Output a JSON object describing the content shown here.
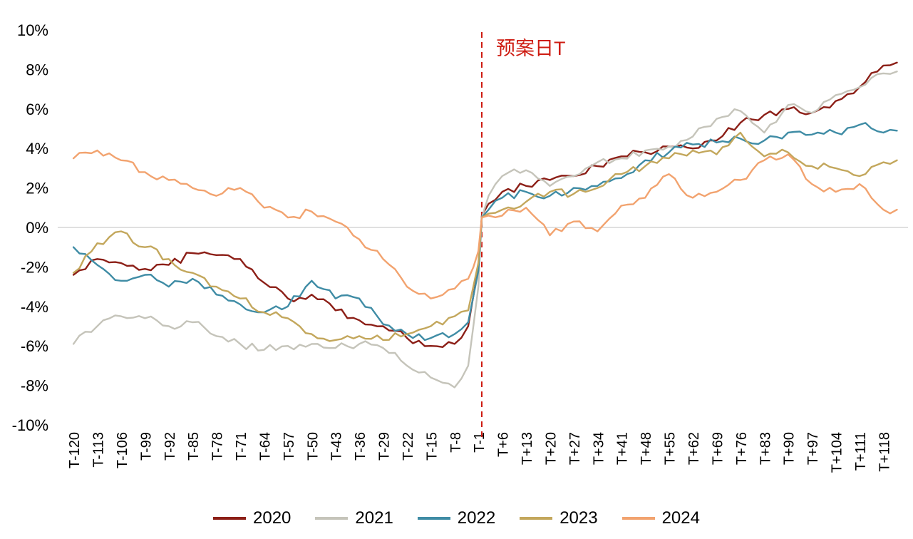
{
  "chart_data": {
    "type": "line",
    "title": "",
    "event_label": "预案日T",
    "event_x": 0,
    "event_line_color": "#CE1C12",
    "zero_line_color": "#D6D6D6",
    "text_color": "#000000",
    "ylim": [
      -10,
      10
    ],
    "y_ticks": [
      {
        "label": "10%",
        "value": 10
      },
      {
        "label": "8%",
        "value": 8
      },
      {
        "label": "6%",
        "value": 6
      },
      {
        "label": "4%",
        "value": 4
      },
      {
        "label": "2%",
        "value": 2
      },
      {
        "label": "0%",
        "value": 0
      },
      {
        "label": "-2%",
        "value": -2
      },
      {
        "label": "-4%",
        "value": -4
      },
      {
        "label": "-6%",
        "value": -6
      },
      {
        "label": "-8%",
        "value": -8
      },
      {
        "label": "-10%",
        "value": -10
      }
    ],
    "x_ticks": [
      {
        "label": "T-120",
        "value": -120
      },
      {
        "label": "T-113",
        "value": -113
      },
      {
        "label": "T-106",
        "value": -106
      },
      {
        "label": "T-99",
        "value": -99
      },
      {
        "label": "T-92",
        "value": -92
      },
      {
        "label": "T-85",
        "value": -85
      },
      {
        "label": "T-78",
        "value": -78
      },
      {
        "label": "T-71",
        "value": -71
      },
      {
        "label": "T-64",
        "value": -64
      },
      {
        "label": "T-57",
        "value": -57
      },
      {
        "label": "T-50",
        "value": -50
      },
      {
        "label": "T-43",
        "value": -43
      },
      {
        "label": "T-36",
        "value": -36
      },
      {
        "label": "T-29",
        "value": -29
      },
      {
        "label": "T-22",
        "value": -22
      },
      {
        "label": "T-15",
        "value": -15
      },
      {
        "label": "T-8",
        "value": -8
      },
      {
        "label": "T-1",
        "value": -1
      },
      {
        "label": "T+6",
        "value": 6
      },
      {
        "label": "T+13",
        "value": 13
      },
      {
        "label": "T+20",
        "value": 20
      },
      {
        "label": "T+27",
        "value": 27
      },
      {
        "label": "T+34",
        "value": 34
      },
      {
        "label": "T+41",
        "value": 41
      },
      {
        "label": "T+48",
        "value": 48
      },
      {
        "label": "T+55",
        "value": 55
      },
      {
        "label": "T+62",
        "value": 62
      },
      {
        "label": "T+69",
        "value": 69
      },
      {
        "label": "T+76",
        "value": 76
      },
      {
        "label": "T+83",
        "value": 83
      },
      {
        "label": "T+90",
        "value": 90
      },
      {
        "label": "T+97",
        "value": 97
      },
      {
        "label": "T+104",
        "value": 104
      },
      {
        "label": "T+111",
        "value": 111
      },
      {
        "label": "T+118",
        "value": 118
      }
    ],
    "x": [
      -120,
      -113,
      -106,
      -99,
      -92,
      -85,
      -78,
      -71,
      -64,
      -57,
      -50,
      -43,
      -36,
      -29,
      -22,
      -15,
      -8,
      -4,
      -1,
      0,
      2,
      6,
      13,
      20,
      27,
      34,
      41,
      48,
      55,
      62,
      69,
      76,
      83,
      90,
      97,
      104,
      111,
      118,
      122
    ],
    "series": [
      {
        "name": "2020",
        "color": "#8C1F17",
        "values": [
          -2.4,
          -1.6,
          -1.8,
          -2.1,
          -1.9,
          -1.3,
          -1.4,
          -1.6,
          -2.8,
          -3.6,
          -3.4,
          -4.2,
          -4.7,
          -5.0,
          -5.6,
          -6.0,
          -5.9,
          -5.0,
          -2.0,
          0.6,
          1.2,
          1.8,
          2.1,
          2.4,
          2.6,
          3.1,
          3.6,
          3.8,
          4.1,
          4.0,
          4.4,
          5.3,
          5.7,
          6.0,
          5.8,
          6.4,
          7.1,
          8.2,
          8.35
        ]
      },
      {
        "name": "2021",
        "color": "#C5C4BA",
        "values": [
          -5.9,
          -5.0,
          -4.5,
          -4.6,
          -5.0,
          -4.8,
          -5.5,
          -5.9,
          -6.2,
          -6.0,
          -5.9,
          -6.1,
          -5.9,
          -6.1,
          -7.0,
          -7.6,
          -8.1,
          -7.0,
          -3.0,
          0.5,
          1.6,
          2.6,
          2.9,
          2.1,
          2.6,
          3.3,
          3.5,
          3.9,
          4.1,
          4.6,
          5.5,
          5.9,
          4.8,
          6.2,
          5.8,
          6.7,
          7.1,
          7.8,
          7.9
        ]
      },
      {
        "name": "2022",
        "color": "#3F8CA5",
        "values": [
          -1.0,
          -1.9,
          -2.7,
          -2.4,
          -3.0,
          -2.6,
          -3.4,
          -3.9,
          -4.3,
          -4.0,
          -2.7,
          -3.6,
          -3.6,
          -4.9,
          -5.4,
          -5.6,
          -5.4,
          -4.8,
          -2.2,
          0.5,
          0.9,
          1.5,
          1.8,
          1.6,
          2.0,
          2.1,
          2.5,
          3.4,
          3.8,
          4.2,
          4.3,
          4.5,
          4.4,
          4.8,
          4.7,
          4.8,
          5.2,
          4.8,
          4.9
        ]
      },
      {
        "name": "2023",
        "color": "#C3A75C",
        "values": [
          -2.3,
          -0.8,
          -0.2,
          -1.0,
          -1.6,
          -2.3,
          -3.0,
          -3.6,
          -4.3,
          -4.6,
          -5.4,
          -5.7,
          -5.5,
          -5.7,
          -5.4,
          -5.0,
          -4.5,
          -4.2,
          -1.8,
          0.5,
          0.7,
          0.9,
          1.3,
          1.8,
          1.7,
          2.0,
          2.7,
          3.1,
          3.5,
          3.9,
          3.7,
          4.8,
          3.6,
          3.8,
          3.1,
          3.0,
          2.6,
          3.3,
          3.4
        ]
      },
      {
        "name": "2024",
        "color": "#F2A36F",
        "values": [
          3.5,
          3.9,
          3.4,
          2.8,
          2.4,
          2.0,
          1.6,
          2.0,
          1.0,
          0.5,
          0.8,
          0.3,
          -0.6,
          -1.6,
          -3.0,
          -3.6,
          -3.1,
          -2.6,
          -1.2,
          0.5,
          0.6,
          0.6,
          1.0,
          -0.4,
          0.3,
          -0.2,
          1.1,
          1.5,
          2.7,
          1.5,
          1.8,
          2.4,
          3.4,
          3.7,
          2.2,
          1.8,
          2.2,
          0.9,
          0.9
        ]
      }
    ],
    "grid": "zero-line-only",
    "legend_position": "bottom"
  }
}
